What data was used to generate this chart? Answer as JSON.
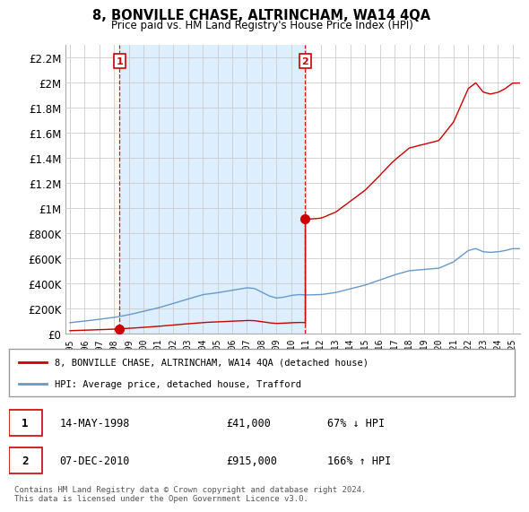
{
  "title": "8, BONVILLE CHASE, ALTRINCHAM, WA14 4QA",
  "subtitle": "Price paid vs. HM Land Registry's House Price Index (HPI)",
  "sale1_date": 1998.37,
  "sale1_price": 41000,
  "sale1_label": "1",
  "sale2_date": 2010.93,
  "sale2_price": 915000,
  "sale2_label": "2",
  "legend_property": "8, BONVILLE CHASE, ALTRINCHAM, WA14 4QA (detached house)",
  "legend_hpi": "HPI: Average price, detached house, Trafford",
  "footer": "Contains HM Land Registry data © Crown copyright and database right 2024.\nThis data is licensed under the Open Government Licence v3.0.",
  "property_color": "#cc0000",
  "hpi_color": "#6699cc",
  "shade_color": "#ddeeff",
  "background_color": "#ffffff",
  "grid_color": "#cccccc",
  "ylim": [
    0,
    2300000
  ],
  "xlim": [
    1994.7,
    2025.5
  ]
}
